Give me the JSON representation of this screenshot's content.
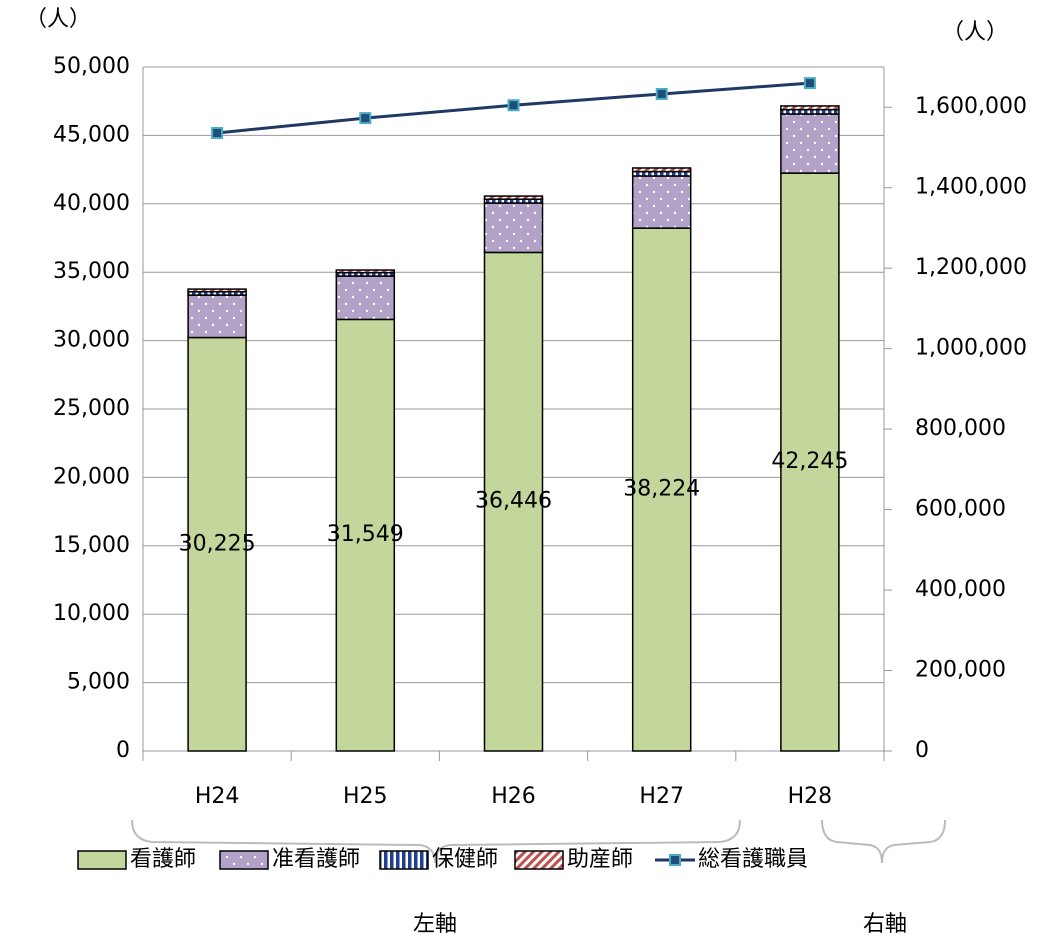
{
  "chart_data": {
    "type": "bar",
    "y_unit": "（人）",
    "y2_unit": "（人）",
    "categories": [
      "H24",
      "H25",
      "H26",
      "H27",
      "H28"
    ],
    "series": [
      {
        "name": "看護師",
        "color": "#c3d69b",
        "values": [
          30225,
          31549,
          36446,
          38224,
          42245
        ],
        "value_labels": [
          "30,225",
          "31,549",
          "36,446",
          "38,224",
          "42,245"
        ]
      },
      {
        "name": "准看護師",
        "color": "#b3a2c7",
        "values": [
          3100,
          3170,
          3610,
          3810,
          4320
        ]
      },
      {
        "name": "保健師",
        "color": "#1f3f8f",
        "values": [
          250,
          250,
          280,
          320,
          320
        ]
      },
      {
        "name": "助産師",
        "color": "#c0504d",
        "values": [
          190,
          190,
          230,
          265,
          270
        ]
      },
      {
        "name": "総看護職員",
        "color": "#1f3864",
        "type": "line",
        "axis": "y2",
        "values": [
          1536000,
          1573000,
          1605000,
          1633000,
          1660000
        ]
      }
    ],
    "ylim": [
      0,
      50000
    ],
    "yticks": [
      0,
      {
        "value": 5000,
        "label": "5,000"
      },
      {
        "value": 10000,
        "label": "10,000"
      },
      {
        "value": 15000,
        "label": "15,000"
      },
      {
        "value": 20000,
        "label": "20,000"
      },
      {
        "value": 25000,
        "label": "25,000"
      },
      {
        "value": 30000,
        "label": "30,000"
      },
      {
        "value": 35000,
        "label": "35,000"
      },
      {
        "value": 40000,
        "label": "40,000"
      },
      {
        "value": 45000,
        "label": "45,000"
      },
      {
        "value": 50000,
        "label": "50,000"
      }
    ],
    "y2lim": [
      0,
      1700000
    ],
    "y2ticks": [
      0,
      {
        "value": 200000,
        "label": "200,000"
      },
      {
        "value": 400000,
        "label": "400,000"
      },
      {
        "value": 600000,
        "label": "600,000"
      },
      {
        "value": 800000,
        "label": "800,000"
      },
      {
        "value": 1000000,
        "label": "1,000,000"
      },
      {
        "value": 1200000,
        "label": "1,200,000"
      },
      {
        "value": 1400000,
        "label": "1,400,000"
      },
      {
        "value": 1600000,
        "label": "1,600,000"
      }
    ],
    "grid": true,
    "axis_groups": [
      "左軸",
      "右軸"
    ]
  }
}
